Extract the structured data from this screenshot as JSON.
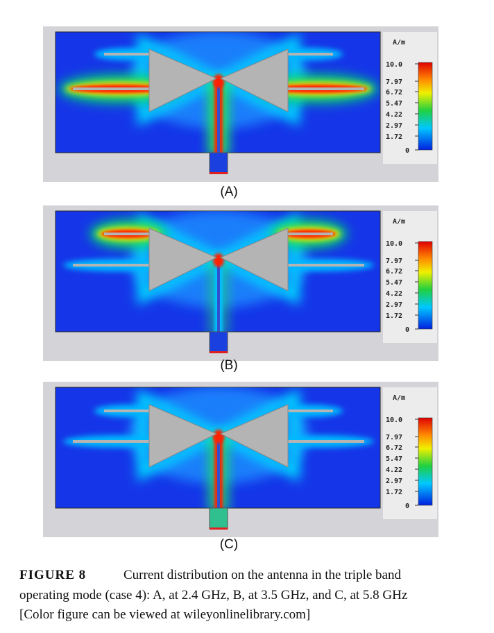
{
  "figure": {
    "panels": [
      {
        "label": "(A)"
      },
      {
        "label": "(B)"
      },
      {
        "label": "(C)"
      }
    ],
    "scale": {
      "unit": "A/m",
      "labels": [
        "10.0",
        "7.97",
        "6.72",
        "5.47",
        "4.22",
        "2.97",
        "1.72",
        "0"
      ]
    },
    "caption": {
      "label": "FIGURE 8",
      "lines": [
        "Current distribution on the antenna in the triple band",
        "operating mode (case 4): A, at 2.4 GHz, B, at 3.5 GHz, and C, at 5.8 GHz",
        "[Color figure can be viewed at wileyonlinelibrary.com]"
      ]
    }
  }
}
